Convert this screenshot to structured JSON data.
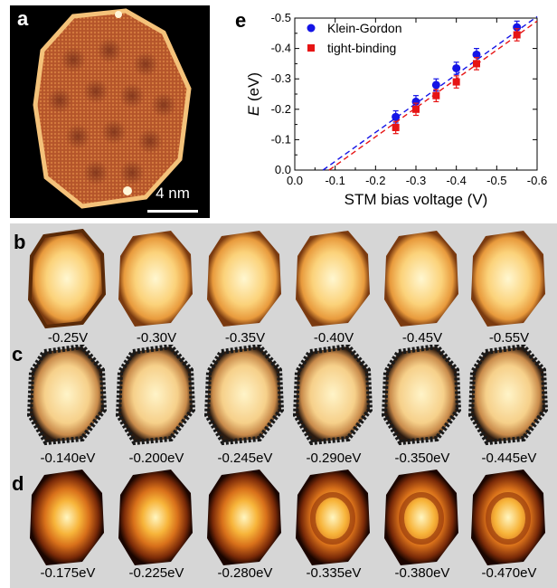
{
  "panel_a": {
    "letter": "a",
    "scale_label": "4 nm"
  },
  "chart_data": {
    "type": "scatter",
    "panel_letter": "e",
    "xlabel": "STM bias voltage (V)",
    "ylabel_prefix": "E",
    "ylabel_suffix": " (eV)",
    "xlim": [
      0.0,
      -0.6
    ],
    "ylim": [
      0.0,
      -0.5
    ],
    "x_ticks": [
      "0.0",
      "-0.1",
      "-0.2",
      "-0.3",
      "-0.4",
      "-0.5",
      "-0.6"
    ],
    "y_ticks": [
      "0.0",
      "-0.1",
      "-0.2",
      "-0.3",
      "-0.4",
      "-0.5"
    ],
    "legend_position": "top-left",
    "series": [
      {
        "name": "Klein-Gordon",
        "color": "#1414e6",
        "marker": "circle",
        "x": [
          -0.25,
          -0.3,
          -0.35,
          -0.4,
          -0.45,
          -0.55
        ],
        "y": [
          -0.175,
          -0.225,
          -0.28,
          -0.335,
          -0.38,
          -0.47
        ],
        "err": [
          0.02,
          0.02,
          0.02,
          0.02,
          0.02,
          0.02
        ],
        "fit": {
          "x": [
            -0.07,
            -0.6
          ],
          "y": [
            0.0,
            -0.505
          ]
        }
      },
      {
        "name": "tight-binding",
        "color": "#e61414",
        "marker": "square",
        "x": [
          -0.25,
          -0.3,
          -0.35,
          -0.4,
          -0.45,
          -0.55
        ],
        "y": [
          -0.14,
          -0.2,
          -0.245,
          -0.29,
          -0.35,
          -0.445
        ],
        "err": [
          0.02,
          0.02,
          0.02,
          0.02,
          0.02,
          0.02
        ],
        "fit": {
          "x": [
            -0.085,
            -0.6
          ],
          "y": [
            0.0,
            -0.49
          ]
        }
      }
    ]
  },
  "panel_b": {
    "letter": "b",
    "labels": [
      "-0.25V",
      "-0.30V",
      "-0.35V",
      "-0.40V",
      "-0.45V",
      "-0.55V"
    ]
  },
  "panel_c": {
    "letter": "c",
    "labels": [
      "-0.140eV",
      "-0.200eV",
      "-0.245eV",
      "-0.290eV",
      "-0.350eV",
      "-0.445eV"
    ]
  },
  "panel_d": {
    "letter": "d",
    "labels": [
      "-0.175eV",
      "-0.225eV",
      "-0.280eV",
      "-0.335eV",
      "-0.380eV",
      "-0.470eV"
    ]
  }
}
